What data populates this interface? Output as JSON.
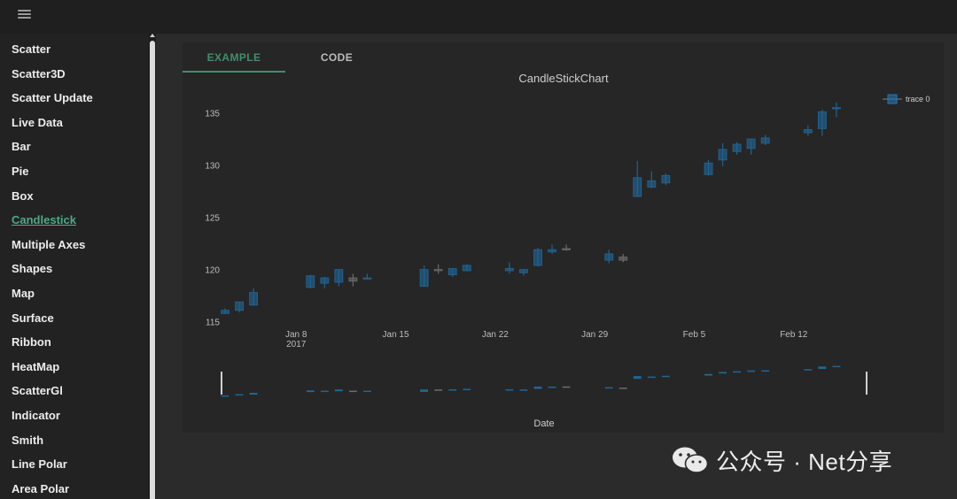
{
  "sidebar": {
    "items": [
      {
        "label": "Scatter",
        "active": false
      },
      {
        "label": "Scatter3D",
        "active": false
      },
      {
        "label": "Scatter Update",
        "active": false
      },
      {
        "label": "Live Data",
        "active": false
      },
      {
        "label": "Bar",
        "active": false
      },
      {
        "label": "Pie",
        "active": false
      },
      {
        "label": "Box",
        "active": false
      },
      {
        "label": "Candlestick",
        "active": true
      },
      {
        "label": "Multiple Axes",
        "active": false
      },
      {
        "label": "Shapes",
        "active": false
      },
      {
        "label": "Map",
        "active": false
      },
      {
        "label": "Surface",
        "active": false
      },
      {
        "label": "Ribbon",
        "active": false
      },
      {
        "label": "HeatMap",
        "active": false
      },
      {
        "label": "ScatterGl",
        "active": false
      },
      {
        "label": "Indicator",
        "active": false
      },
      {
        "label": "Smith",
        "active": false
      },
      {
        "label": "Line Polar",
        "active": false
      },
      {
        "label": "Area Polar",
        "active": false
      }
    ]
  },
  "tabs": {
    "example": "EXAMPLE",
    "code": "CODE"
  },
  "watermark": {
    "text": "公众号 · Net分享"
  },
  "chart_data": {
    "type": "candlestick",
    "title": "CandleStickChart",
    "xlabel": "Date",
    "ylabel": "",
    "ylim": [
      114.3,
      137
    ],
    "xlim": [
      "2017-01-03",
      "2017-02-17"
    ],
    "yticks": [
      115,
      120,
      125,
      130,
      135
    ],
    "xticks": [
      {
        "date": "2017-01-08",
        "label": "Jan 8",
        "sublabel": "2017"
      },
      {
        "date": "2017-01-15",
        "label": "Jan 15",
        "sublabel": ""
      },
      {
        "date": "2017-01-22",
        "label": "Jan 22",
        "sublabel": ""
      },
      {
        "date": "2017-01-29",
        "label": "Jan 29",
        "sublabel": ""
      },
      {
        "date": "2017-02-05",
        "label": "Feb 5",
        "sublabel": ""
      },
      {
        "date": "2017-02-12",
        "label": "Feb 12",
        "sublabel": ""
      }
    ],
    "legend": {
      "position": "top-right"
    },
    "rangeslider": true,
    "colors": {
      "increasing": "#1f77b4",
      "decreasing": "#7f7f7f"
    },
    "series": [
      {
        "name": "trace 0",
        "x": [
          "2017-01-03",
          "2017-01-04",
          "2017-01-05",
          "2017-01-09",
          "2017-01-10",
          "2017-01-11",
          "2017-01-12",
          "2017-01-13",
          "2017-01-17",
          "2017-01-18",
          "2017-01-19",
          "2017-01-20",
          "2017-01-23",
          "2017-01-24",
          "2017-01-25",
          "2017-01-26",
          "2017-01-27",
          "2017-01-30",
          "2017-01-31",
          "2017-02-01",
          "2017-02-02",
          "2017-02-03",
          "2017-02-06",
          "2017-02-07",
          "2017-02-08",
          "2017-02-09",
          "2017-02-10",
          "2017-02-13",
          "2017-02-14",
          "2017-02-15"
        ],
        "open": [
          115.8,
          116.1,
          116.6,
          118.3,
          118.7,
          118.8,
          119.2,
          119.1,
          118.4,
          120.0,
          119.5,
          119.9,
          119.9,
          119.7,
          120.4,
          121.7,
          122.0,
          120.9,
          121.2,
          127.0,
          127.9,
          128.3,
          129.1,
          130.5,
          131.3,
          131.6,
          132.1,
          133.1,
          133.5,
          135.5
        ],
        "high": [
          116.3,
          116.9,
          118.2,
          119.5,
          119.3,
          119.9,
          119.6,
          119.6,
          120.4,
          120.5,
          120.0,
          120.5,
          120.7,
          120.0,
          122.1,
          122.4,
          122.4,
          121.9,
          121.5,
          130.4,
          129.4,
          129.2,
          130.5,
          132.1,
          132.2,
          132.4,
          132.9,
          133.8,
          135.3,
          136.0
        ],
        "low": [
          115.8,
          115.9,
          116.6,
          118.2,
          118.2,
          118.4,
          118.4,
          119.1,
          118.4,
          119.6,
          119.3,
          119.9,
          119.6,
          119.4,
          120.3,
          121.5,
          121.8,
          120.6,
          120.7,
          127.0,
          127.8,
          128.1,
          129.0,
          129.9,
          131.0,
          131.0,
          131.9,
          132.8,
          132.8,
          134.6
        ],
        "close": [
          116.1,
          116.9,
          117.8,
          119.4,
          119.2,
          120.0,
          118.9,
          119.2,
          120.0,
          119.9,
          120.1,
          120.4,
          120.1,
          120.0,
          121.9,
          121.9,
          121.9,
          121.5,
          120.9,
          128.8,
          128.5,
          129.0,
          130.2,
          131.5,
          132.0,
          132.5,
          132.6,
          133.4,
          135.1,
          135.5
        ]
      }
    ]
  }
}
